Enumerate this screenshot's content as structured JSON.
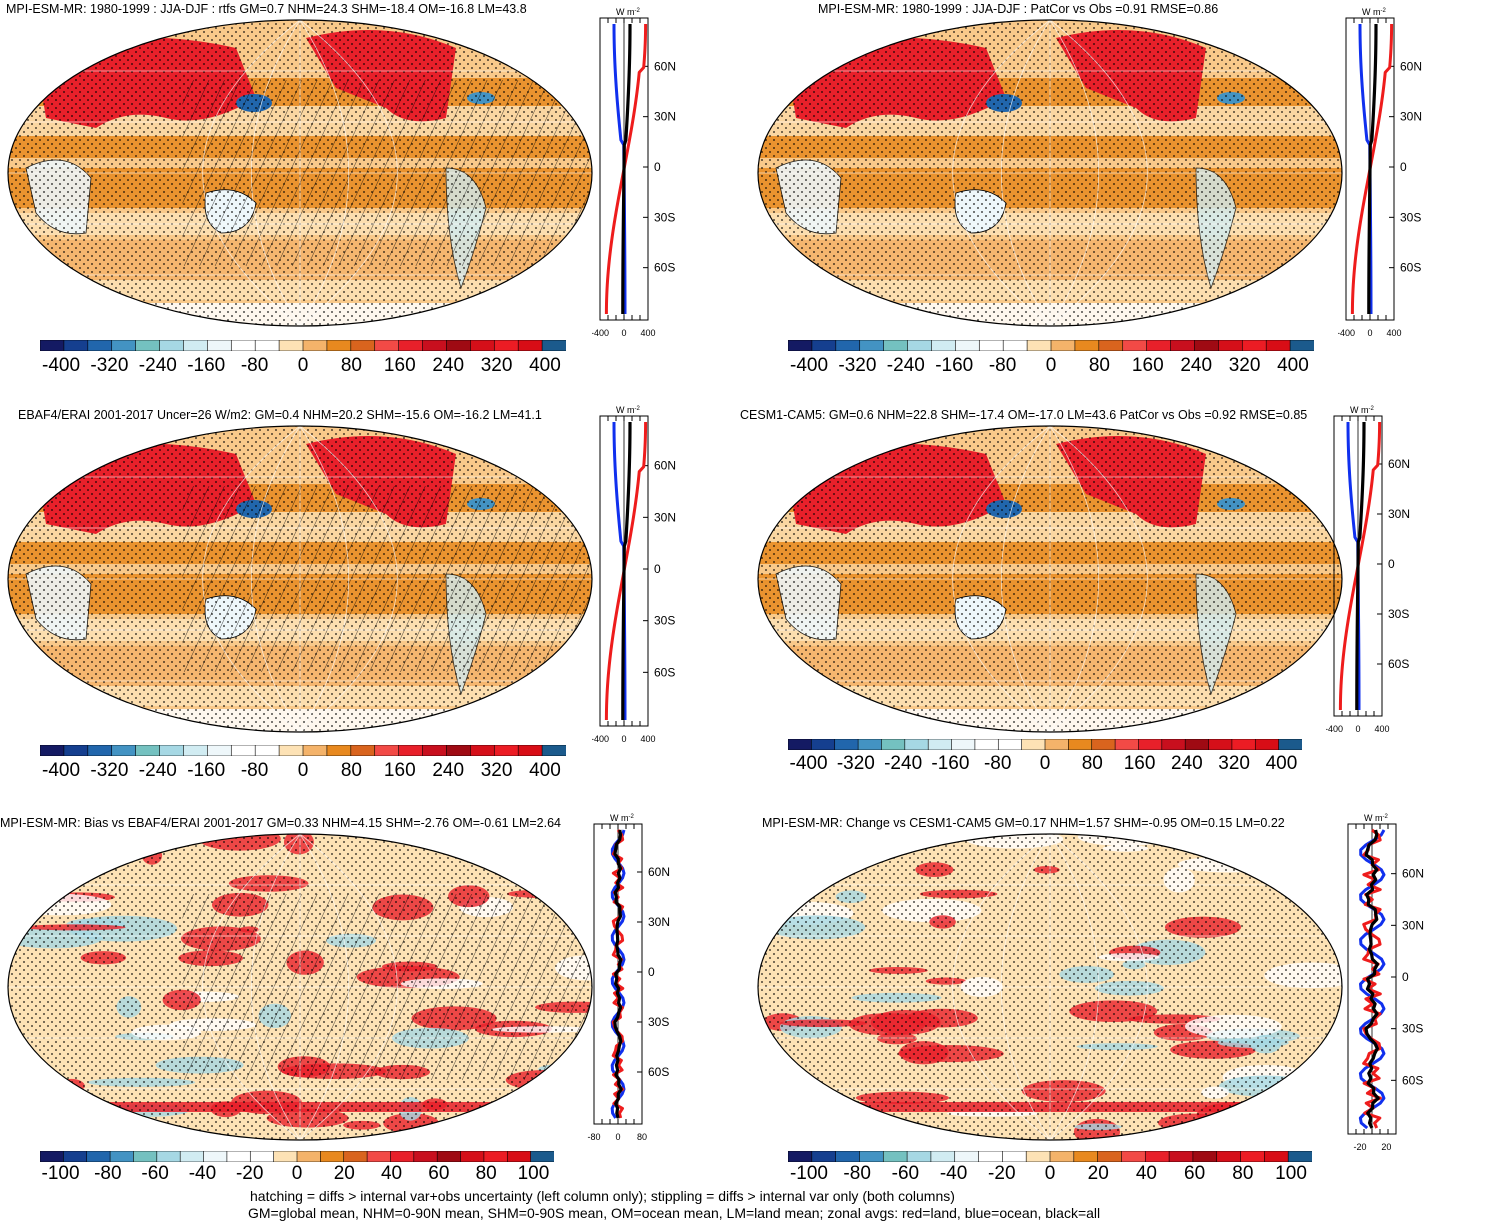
{
  "panels": [
    {
      "id": "p1",
      "title": "MPI-ESM-MR: 1980-1999 : JJA-DJF : rtfs GM=0.7 NHM=24.3 SHM=-18.4 OM=-16.8 LM=43.8",
      "hatching": true,
      "zonal_xticks": [
        "-400",
        "0",
        "400"
      ],
      "colorbar_labels": [
        "-400",
        "-320",
        "-240",
        "-160",
        "-80",
        "0",
        "80",
        "160",
        "240",
        "320",
        "400"
      ]
    },
    {
      "id": "p2",
      "title": "MPI-ESM-MR: 1980-1999 : JJA-DJF : PatCor vs Obs =0.91 RMSE=0.86",
      "hatching": false,
      "zonal_xticks": [
        "-400",
        "0",
        "400"
      ],
      "colorbar_labels": [
        "-400",
        "-320",
        "-240",
        "-160",
        "-80",
        "0",
        "80",
        "160",
        "240",
        "320",
        "400"
      ]
    },
    {
      "id": "p3",
      "title": "EBAF4/ERAI 2001-2017 Uncer=26 W/m2: GM=0.4 NHM=20.2 SHM=-15.6 OM=-16.2 LM=41.1",
      "hatching": true,
      "zonal_xticks": [
        "-400",
        "0",
        "400"
      ],
      "colorbar_labels": [
        "-400",
        "-320",
        "-240",
        "-160",
        "-80",
        "0",
        "80",
        "160",
        "240",
        "320",
        "400"
      ]
    },
    {
      "id": "p4",
      "title": "CESM1-CAM5: GM=0.6 NHM=22.8 SHM=-17.4 OM=-17.0 LM=43.6 PatCor vs Obs =0.92 RMSE=0.85",
      "hatching": false,
      "zonal_xticks": [
        "-400",
        "0",
        "400"
      ],
      "colorbar_labels": [
        "-400",
        "-320",
        "-240",
        "-160",
        "-80",
        "0",
        "80",
        "160",
        "240",
        "320",
        "400"
      ]
    },
    {
      "id": "p5",
      "title": "MPI-ESM-MR: Bias vs EBAF4/ERAI 2001-2017 GM=0.33 NHM=4.15 SHM=-2.76 OM=-0.61 LM=2.64",
      "hatching": true,
      "zonal_xticks": [
        "-80",
        "0",
        "80"
      ],
      "colorbar_labels": [
        "-100",
        "-80",
        "-60",
        "-40",
        "-20",
        "0",
        "20",
        "40",
        "60",
        "80",
        "100"
      ]
    },
    {
      "id": "p6",
      "title": "MPI-ESM-MR: Change vs CESM1-CAM5 GM=0.17 NHM=1.57 SHM=-0.95 OM=0.15 LM=0.22",
      "hatching": false,
      "zonal_xticks": [
        "-20",
        "20"
      ],
      "colorbar_labels": [
        "-100",
        "-80",
        "-60",
        "-40",
        "-20",
        "0",
        "20",
        "40",
        "60",
        "80",
        "100"
      ]
    }
  ],
  "zonal_units": "W m",
  "zonal_units_exp": "-2",
  "lat_ticks": [
    "60N",
    "30N",
    "0",
    "30S",
    "60S"
  ],
  "colorbar_colors": [
    "#141a63",
    "#153f8f",
    "#2166ac",
    "#4393c3",
    "#74c1c0",
    "#a6d8e4",
    "#d1ecf2",
    "#eef7fa",
    "#ffffff",
    "#ffffff",
    "#fde2b5",
    "#f4b36a",
    "#e8891f",
    "#d9641e",
    "#f24a46",
    "#e8202a",
    "#c80f1e",
    "#9f0a13",
    "#d50f19",
    "#ec1c24",
    "#d80d16",
    "#1b5a8c"
  ],
  "zonal_line_colors": {
    "land": "#ee1c1c",
    "ocean": "#1030ee",
    "all": "#000000"
  },
  "footnote_line1": "hatching = diffs > internal var+obs uncertainty (left column only); stippling = diffs > internal var only (both columns)",
  "footnote_line2": "GM=global mean, NHM=0-90N mean, SHM=0-90S mean, OM=ocean mean, LM=land mean; zonal avgs: red=land, blue=ocean, black=all"
}
